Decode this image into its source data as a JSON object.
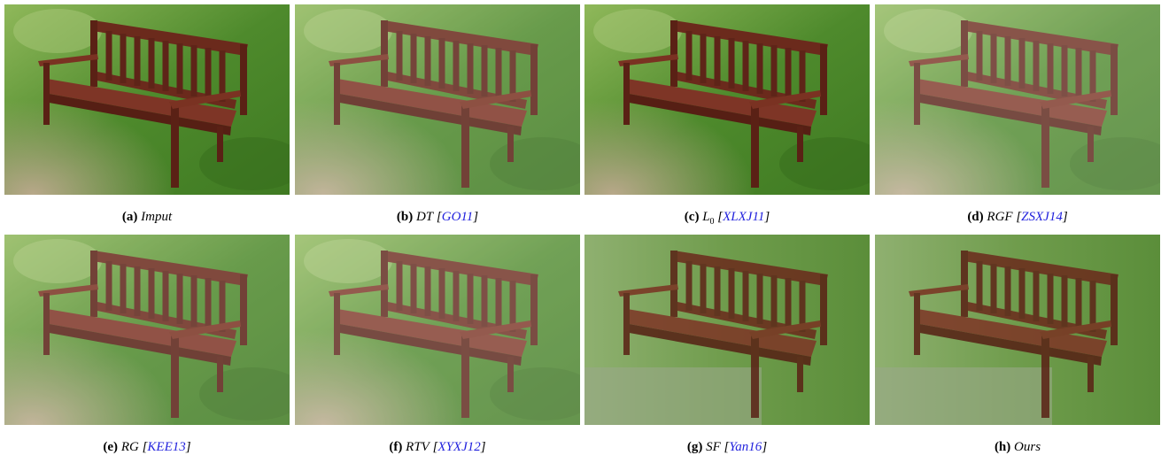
{
  "figure": {
    "cite_brackets": [
      "[",
      "]"
    ],
    "panels": [
      {
        "label": "(a)",
        "method": "Imput"
      },
      {
        "label": "(b)",
        "method": "DT",
        "cite": "GO11"
      },
      {
        "label": "(c)",
        "method": "L",
        "subscript": "0",
        "cite": "XLXJ11"
      },
      {
        "label": "(d)",
        "method": "RGF",
        "cite": "ZSXJ14"
      },
      {
        "label": "(e)",
        "method": "RG",
        "cite": "KEE13"
      },
      {
        "label": "(f)",
        "method": "RTV",
        "cite": "XYXJ12"
      },
      {
        "label": "(g)",
        "method": "SF",
        "cite": "Yan16"
      },
      {
        "label": "(h)",
        "method": "Ours"
      }
    ]
  }
}
